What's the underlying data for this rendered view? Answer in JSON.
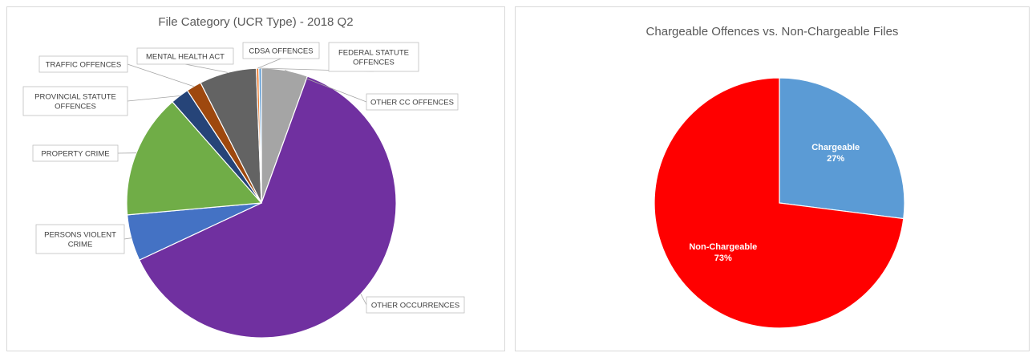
{
  "chart_data": [
    {
      "type": "pie",
      "title": "File Category (UCR Type) - 2018 Q2",
      "slices": [
        {
          "label": "OTHER CC OFFENCES",
          "value": 5.5,
          "color": "#a5a5a5"
        },
        {
          "label": "OTHER OCCURRENCES",
          "value": 62.0,
          "color": "#7030a0"
        },
        {
          "label": "PERSONS VIOLENT CRIME",
          "value": 5.5,
          "color": "#4472c4"
        },
        {
          "label": "PROPERTY CRIME",
          "value": 14.8,
          "color": "#70ad47"
        },
        {
          "label": "PROVINCIAL STATUTE OFFENCES",
          "value": 2.2,
          "color": "#264478"
        },
        {
          "label": "TRAFFIC OFFENCES",
          "value": 1.8,
          "color": "#9e480e"
        },
        {
          "label": "MENTAL HEALTH ACT",
          "value": 6.8,
          "color": "#636363"
        },
        {
          "label": "CDSA OFFENCES",
          "value": 0.3,
          "color": "#ed7d31"
        },
        {
          "label": "FEDERAL STATUTE OFFENCES",
          "value": 0.3,
          "color": "#5b9bd5"
        }
      ]
    },
    {
      "type": "pie",
      "title": "Chargeable Offences vs. Non-Chargeable Files",
      "slices": [
        {
          "label": "Chargeable",
          "value": 27,
          "display": "27%",
          "color": "#5b9bd5"
        },
        {
          "label": "Non-Chargeable",
          "value": 73,
          "display": "73%",
          "color": "#ff0000"
        }
      ]
    }
  ]
}
